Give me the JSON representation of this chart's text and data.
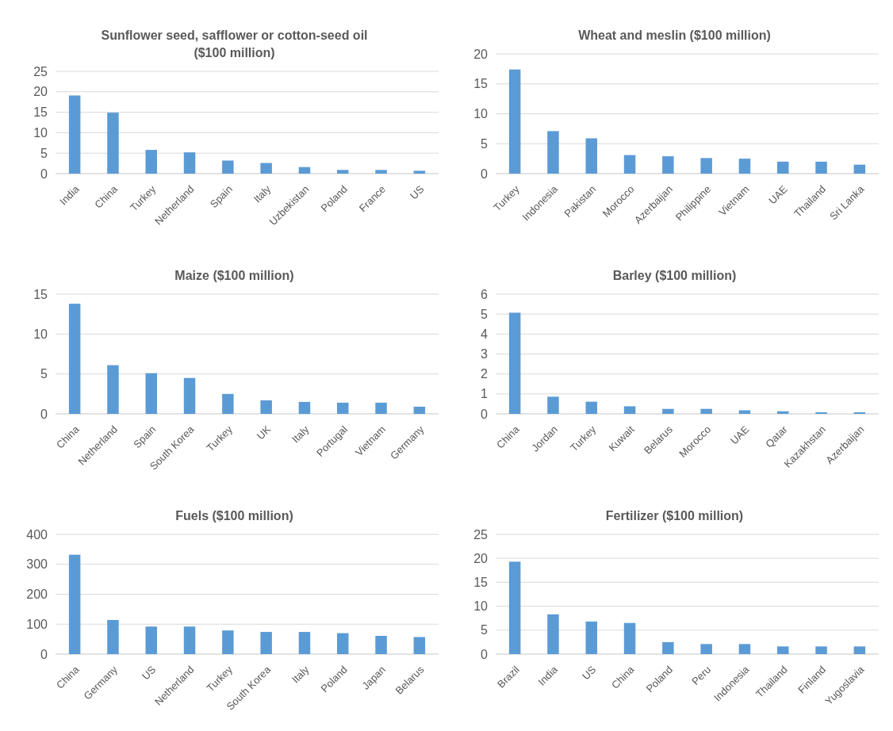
{
  "chart_data": [
    {
      "type": "bar",
      "title": "Sunflower seed, safflower or cotton-seed oil ($100 million)",
      "categories": [
        "India",
        "China",
        "Turkey",
        "Netherland",
        "Spain",
        "Italy",
        "Uzbekistan",
        "Poland",
        "France",
        "US"
      ],
      "values": [
        19.1,
        14.9,
        5.8,
        5.2,
        3.2,
        2.6,
        1.6,
        0.9,
        0.9,
        0.7
      ],
      "color": "#5b9bd5",
      "ylim": [
        0,
        25
      ],
      "yticks": [
        0,
        5,
        10,
        15,
        20,
        25
      ],
      "grid": "y"
    },
    {
      "type": "bar",
      "title": "Wheat and meslin ($100 million)",
      "categories": [
        "Turkey",
        "Indonesia",
        "Pakistan",
        "Morocco",
        "Azerbaijan",
        "Philippine",
        "Vietnam",
        "UAE",
        "Thailand",
        "Sri Lanka"
      ],
      "values": [
        17.4,
        7.1,
        5.9,
        3.1,
        2.9,
        2.6,
        2.5,
        2.0,
        2.0,
        1.5
      ],
      "color": "#5b9bd5",
      "ylim": [
        0,
        20
      ],
      "yticks": [
        0,
        5,
        10,
        15,
        20
      ],
      "grid": "y"
    },
    {
      "type": "bar",
      "title": "Maize ($100 million)",
      "categories": [
        "China",
        "Netherland",
        "Spain",
        "South Korea",
        "Turkey",
        "UK",
        "Italy",
        "Portugal",
        "Vietnam",
        "Germany"
      ],
      "values": [
        13.8,
        6.1,
        5.1,
        4.5,
        2.5,
        1.7,
        1.5,
        1.4,
        1.4,
        0.9
      ],
      "color": "#5b9bd5",
      "ylim": [
        0,
        15
      ],
      "yticks": [
        0,
        5,
        10,
        15
      ],
      "grid": "y"
    },
    {
      "type": "bar",
      "title": "Barley ($100 million)",
      "categories": [
        "China",
        "Jordan",
        "Turkey",
        "Kuwait",
        "Belarus",
        "Morocco",
        "UAE",
        "Qatar",
        "Kazakhstan",
        "Azerbaijan"
      ],
      "values": [
        5.07,
        0.86,
        0.61,
        0.38,
        0.25,
        0.25,
        0.18,
        0.13,
        0.08,
        0.08
      ],
      "color": "#5b9bd5",
      "ylim": [
        0,
        6
      ],
      "yticks": [
        0,
        1,
        2,
        3,
        4,
        5,
        6
      ],
      "grid": "y"
    },
    {
      "type": "bar",
      "title": "Fuels ($100 million)",
      "categories": [
        "China",
        "Germany",
        "US",
        "Netherland",
        "Turkey",
        "South Korea",
        "Italy",
        "Poland",
        "Japan",
        "Belarus"
      ],
      "values": [
        332,
        114,
        92,
        92,
        79,
        74,
        74,
        70,
        61,
        57
      ],
      "color": "#5b9bd5",
      "ylim": [
        0,
        400
      ],
      "yticks": [
        0,
        100,
        200,
        300,
        400
      ],
      "grid": "y"
    },
    {
      "type": "bar",
      "title": "Fertilizer ($100 million)",
      "categories": [
        "Brazil",
        "India",
        "US",
        "China",
        "Poland",
        "Peru",
        "Indonesia",
        "Thailand",
        "Finland",
        "Yugoslavia"
      ],
      "values": [
        19.3,
        8.3,
        6.8,
        6.5,
        2.5,
        2.1,
        2.1,
        1.6,
        1.6,
        1.6
      ],
      "color": "#5b9bd5",
      "ylim": [
        0,
        25
      ],
      "yticks": [
        0,
        5,
        10,
        15,
        20,
        25
      ],
      "grid": "y"
    }
  ]
}
